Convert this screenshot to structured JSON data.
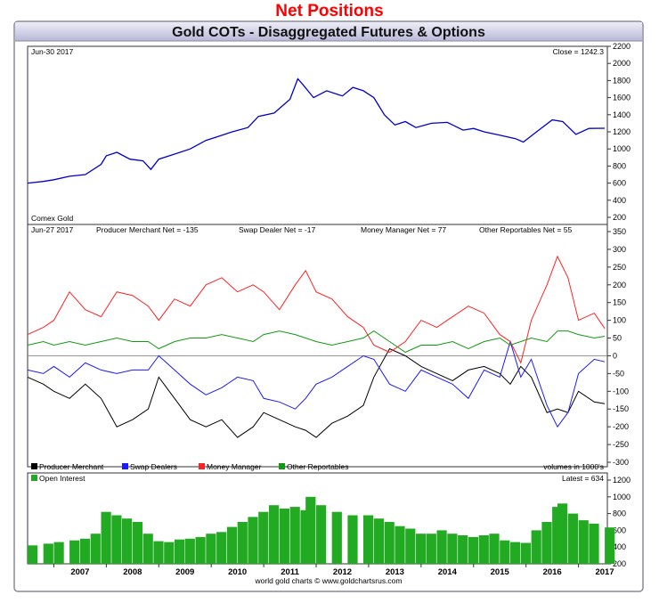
{
  "page_title": "Net Positions",
  "chart_title": "Gold COTs - Disaggregated Futures & Options",
  "credit": "world gold charts © www.goldchartsrus.com",
  "colors": {
    "producer": "#000000",
    "swap": "#1a1aff",
    "money": "#ff2222",
    "other": "#119911",
    "price": "#0000cc",
    "oi": "#22aa22",
    "header_top": "#ededf7",
    "header_bottom": "#b8b8d8"
  },
  "panels": {
    "price": {
      "date_label": "Jun-30  2017",
      "close_label": "Close = 1242.3",
      "series_label": "Comex Gold"
    },
    "cot": {
      "date_label": "Jun-27  2017",
      "producer_label": "Producer Merchant Net = -135",
      "swap_label": "Swap Dealer Net = -17",
      "money_label": "Money Manager Net = 77",
      "other_label": "Other Reportables Net = 55",
      "units_label": "volumes in 1000's"
    },
    "legend": [
      "Producer Merchant",
      "Swap Dealers",
      "Money Manager",
      "Other Reportables"
    ],
    "oi": {
      "series_label": "Open Interest",
      "latest_label": "Latest = 634"
    }
  },
  "chart_data": [
    {
      "type": "line",
      "name": "price",
      "ylim": [
        200,
        2200
      ],
      "yticks": [
        "2200",
        "2000",
        "1800",
        "1600",
        "1400",
        "1200",
        "1000",
        "800",
        "600",
        "400",
        "200"
      ],
      "x": [
        2006.5,
        2006.8,
        2007.0,
        2007.3,
        2007.6,
        2007.9,
        2008.0,
        2008.2,
        2008.45,
        2008.7,
        2008.85,
        2009.0,
        2009.3,
        2009.6,
        2009.9,
        2010.0,
        2010.4,
        2010.7,
        2010.9,
        2011.2,
        2011.5,
        2011.65,
        2011.75,
        2011.95,
        2012.2,
        2012.5,
        2012.7,
        2012.9,
        2013.1,
        2013.3,
        2013.5,
        2013.7,
        2013.9,
        2014.2,
        2014.5,
        2014.8,
        2015.0,
        2015.2,
        2015.5,
        2015.8,
        2015.95,
        2016.2,
        2016.5,
        2016.7,
        2016.95,
        2017.2,
        2017.5
      ],
      "series": [
        {
          "name": "Comex Gold",
          "values": [
            600,
            620,
            640,
            680,
            700,
            820,
            920,
            960,
            880,
            860,
            760,
            880,
            940,
            1000,
            1100,
            1120,
            1200,
            1250,
            1380,
            1420,
            1580,
            1820,
            1750,
            1600,
            1680,
            1620,
            1720,
            1680,
            1600,
            1400,
            1280,
            1320,
            1250,
            1300,
            1310,
            1220,
            1240,
            1200,
            1160,
            1120,
            1080,
            1200,
            1340,
            1320,
            1170,
            1240,
            1242
          ]
        }
      ]
    },
    {
      "type": "line",
      "name": "cot",
      "ylim": [
        -300,
        350
      ],
      "yticks": [
        "350",
        "300",
        "250",
        "200",
        "150",
        "100",
        "50",
        "0",
        "-50",
        "-100",
        "-150",
        "-200",
        "-250",
        "-300"
      ],
      "x": [
        2006.5,
        2006.8,
        2007.0,
        2007.3,
        2007.6,
        2007.9,
        2008.2,
        2008.5,
        2008.8,
        2009.0,
        2009.3,
        2009.6,
        2009.9,
        2010.2,
        2010.5,
        2010.8,
        2011.0,
        2011.3,
        2011.6,
        2011.8,
        2012.0,
        2012.3,
        2012.6,
        2012.9,
        2013.1,
        2013.4,
        2013.7,
        2014.0,
        2014.3,
        2014.6,
        2014.9,
        2015.2,
        2015.5,
        2015.7,
        2015.9,
        2016.1,
        2016.4,
        2016.6,
        2016.8,
        2017.0,
        2017.3,
        2017.5
      ],
      "series": [
        {
          "name": "Producer Merchant",
          "values": [
            -60,
            -80,
            -100,
            -120,
            -80,
            -120,
            -200,
            -180,
            -150,
            -60,
            -120,
            -180,
            -200,
            -180,
            -230,
            -200,
            -160,
            -180,
            -200,
            -210,
            -230,
            -190,
            -170,
            -140,
            -60,
            20,
            0,
            -30,
            -50,
            -70,
            -40,
            -30,
            -50,
            -80,
            -30,
            -60,
            -160,
            -150,
            -160,
            -100,
            -130,
            -135
          ]
        },
        {
          "name": "Swap Dealers",
          "values": [
            -40,
            -50,
            -30,
            -60,
            -20,
            -40,
            -50,
            -40,
            -40,
            0,
            -40,
            -80,
            -110,
            -90,
            -60,
            -70,
            -120,
            -130,
            -150,
            -120,
            -80,
            -60,
            -30,
            0,
            -10,
            -80,
            -100,
            -40,
            -60,
            -80,
            -120,
            -40,
            -60,
            40,
            -60,
            -10,
            -140,
            -200,
            -160,
            -50,
            -10,
            -17
          ]
        },
        {
          "name": "Money Manager",
          "values": [
            60,
            80,
            100,
            180,
            130,
            110,
            180,
            170,
            140,
            100,
            160,
            140,
            200,
            220,
            180,
            200,
            180,
            130,
            200,
            240,
            180,
            160,
            110,
            80,
            30,
            10,
            40,
            100,
            80,
            110,
            140,
            120,
            60,
            40,
            -20,
            100,
            200,
            280,
            220,
            100,
            120,
            77
          ]
        },
        {
          "name": "Other Reportables",
          "values": [
            30,
            40,
            30,
            40,
            30,
            40,
            50,
            40,
            40,
            20,
            40,
            50,
            50,
            60,
            50,
            40,
            60,
            70,
            60,
            50,
            40,
            30,
            40,
            50,
            70,
            40,
            10,
            30,
            30,
            40,
            20,
            40,
            50,
            30,
            40,
            50,
            40,
            70,
            70,
            60,
            50,
            55
          ]
        }
      ]
    },
    {
      "type": "bar",
      "name": "open-interest",
      "ylim": [
        200,
        1200
      ],
      "yticks": [
        "1200",
        "1000",
        "800",
        "600",
        "400",
        "200"
      ],
      "x_range": [
        2006.5,
        2017.55
      ],
      "xticks": [
        "2007",
        "2008",
        "2009",
        "2010",
        "2011",
        "2012",
        "2013",
        "2014",
        "2015",
        "2016",
        "2017"
      ],
      "x": [
        2006.5,
        2006.8,
        2007.0,
        2007.3,
        2007.5,
        2007.7,
        2007.9,
        2008.1,
        2008.3,
        2008.5,
        2008.7,
        2008.9,
        2009.1,
        2009.3,
        2009.5,
        2009.7,
        2009.9,
        2010.1,
        2010.3,
        2010.5,
        2010.7,
        2010.9,
        2011.1,
        2011.3,
        2011.5,
        2011.7,
        2011.8,
        2012.0,
        2012.3,
        2012.6,
        2012.9,
        2013.1,
        2013.3,
        2013.5,
        2013.7,
        2013.9,
        2014.1,
        2014.3,
        2014.5,
        2014.7,
        2014.9,
        2015.1,
        2015.3,
        2015.5,
        2015.7,
        2015.9,
        2016.1,
        2016.3,
        2016.5,
        2016.6,
        2016.8,
        2017.0,
        2017.2,
        2017.5
      ],
      "series": [
        {
          "name": "Open Interest",
          "values": [
            420,
            440,
            460,
            480,
            500,
            560,
            820,
            780,
            740,
            700,
            560,
            470,
            460,
            490,
            500,
            520,
            560,
            580,
            640,
            700,
            760,
            820,
            900,
            860,
            880,
            840,
            1000,
            900,
            820,
            780,
            780,
            740,
            700,
            650,
            620,
            560,
            560,
            600,
            560,
            540,
            520,
            540,
            560,
            480,
            460,
            450,
            600,
            700,
            880,
            920,
            800,
            720,
            680,
            634
          ]
        }
      ]
    }
  ]
}
